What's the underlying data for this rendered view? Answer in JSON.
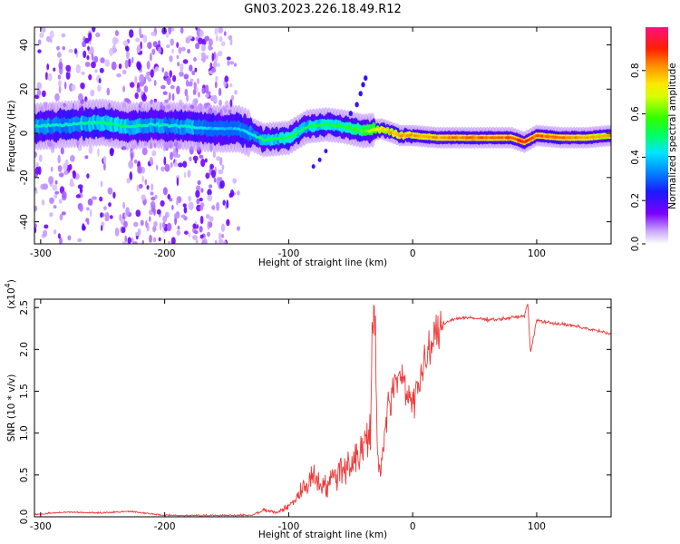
{
  "figure": {
    "title": "GN03.2023.226.18.49.R12"
  },
  "chart_data": [
    {
      "type": "heatmap",
      "xlabel": "Height of straight line (km)",
      "ylabel": "Frequency (Hz)",
      "xlim": [
        -305,
        160
      ],
      "ylim": [
        -50,
        48
      ],
      "x_ticks": [
        -300,
        -200,
        -100,
        0,
        100
      ],
      "y_ticks": [
        -40,
        -20,
        0,
        20,
        40
      ],
      "colorbar": {
        "label": "Normalized spectral amplitude",
        "range": [
          0,
          1
        ],
        "ticks": [
          "0.0",
          "0.2",
          "0.4",
          "0.6",
          "0.8"
        ],
        "colormap": "white-purple-blue-cyan-green-yellow-red-magenta"
      },
      "ridge": {
        "x": [
          -305,
          -280,
          -250,
          -230,
          -210,
          -180,
          -160,
          -140,
          -120,
          -100,
          -85,
          -70,
          -55,
          -40,
          -25,
          -10,
          0,
          20,
          40,
          60,
          80,
          90,
          100,
          120,
          140,
          160
        ],
        "freq": [
          3,
          4,
          5,
          3,
          4,
          3,
          2,
          2,
          -3,
          -2,
          3,
          4,
          3,
          1,
          2,
          -1,
          -1,
          -2,
          -2,
          -2,
          -2,
          -4,
          -1,
          -2,
          -2,
          -1
        ],
        "amplitude": [
          0.45,
          0.45,
          0.5,
          0.5,
          0.45,
          0.45,
          0.4,
          0.4,
          0.5,
          0.55,
          0.5,
          0.55,
          0.55,
          0.6,
          0.75,
          0.8,
          0.8,
          0.8,
          0.85,
          0.85,
          0.85,
          0.9,
          0.85,
          0.85,
          0.8,
          0.8
        ]
      },
      "scatter_region_x": [
        -305,
        -140
      ]
    },
    {
      "type": "line",
      "xlabel": "Height of straight line (km)",
      "ylabel": "SNR (10 * v/v)",
      "y_multiplier": "(x10",
      "y_multiplier_exp": "4",
      "y_multiplier_close": ")",
      "xlim": [
        -305,
        160
      ],
      "ylim": [
        0,
        2.6
      ],
      "x_ticks": [
        -300,
        -200,
        -100,
        0,
        100
      ],
      "y_ticks": [
        "0.0",
        "0.5",
        "1.0",
        "1.5",
        "2.0",
        "2.5"
      ],
      "color": "#ef3a3a",
      "series": [
        {
          "x": [
            -305,
            -280,
            -250,
            -230,
            -200,
            -160,
            -130,
            -120,
            -110,
            -100,
            -90,
            -80,
            -70,
            -60,
            -50,
            -40,
            -35,
            -31,
            -28,
            -25,
            -20,
            -15,
            -10,
            -5,
            0,
            5,
            10,
            15,
            20,
            25,
            30,
            40,
            50,
            60,
            70,
            80,
            90,
            93,
            95,
            100,
            110,
            120,
            130,
            140,
            150,
            160
          ],
          "y": [
            0.02,
            0.05,
            0.04,
            0.06,
            0.01,
            0.01,
            0.01,
            0.08,
            0.05,
            0.12,
            0.3,
            0.5,
            0.35,
            0.55,
            0.65,
            0.8,
            1.0,
            2.55,
            0.6,
            0.7,
            1.3,
            1.5,
            1.75,
            1.5,
            1.4,
            1.6,
            1.8,
            2.05,
            2.2,
            2.3,
            2.35,
            2.38,
            2.37,
            2.36,
            2.36,
            2.38,
            2.4,
            2.55,
            1.95,
            2.35,
            2.32,
            2.3,
            2.28,
            2.25,
            2.22,
            2.18
          ]
        }
      ]
    }
  ]
}
